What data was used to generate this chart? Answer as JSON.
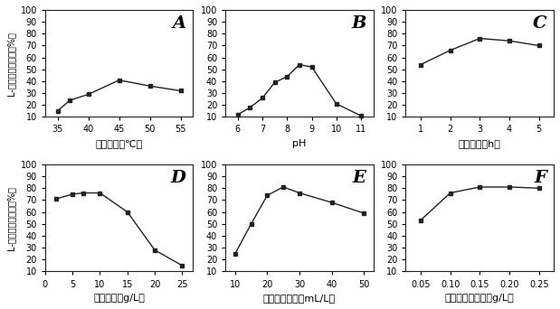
{
  "A": {
    "x": [
      35,
      37,
      40,
      45,
      50,
      55
    ],
    "y": [
      15,
      24,
      29,
      41,
      36,
      32
    ],
    "xlabel": "反应温度（℃）",
    "label": "A",
    "xlim": [
      33,
      57
    ],
    "xticks": [
      35,
      40,
      45,
      50,
      55
    ]
  },
  "B": {
    "x": [
      6,
      6.5,
      7,
      7.5,
      8,
      8.5,
      9,
      10,
      11
    ],
    "y": [
      12,
      18,
      26,
      39,
      44,
      54,
      52,
      21,
      11
    ],
    "xlabel": "pH",
    "label": "B",
    "xlim": [
      5.5,
      11.5
    ],
    "xticks": [
      6,
      7,
      8,
      9,
      10,
      11
    ]
  },
  "C": {
    "x": [
      1,
      2,
      3,
      4,
      5
    ],
    "y": [
      54,
      66,
      76,
      74,
      70
    ],
    "xlabel": "反应时间（h）",
    "label": "C",
    "xlim": [
      0.5,
      5.5
    ],
    "xticks": [
      1,
      2,
      3,
      4,
      5
    ]
  },
  "D": {
    "x": [
      2,
      5,
      7,
      10,
      15,
      20,
      25
    ],
    "y": [
      71,
      75,
      76,
      76,
      60,
      28,
      15
    ],
    "xlabel": "底物浓度（g/L）",
    "label": "D",
    "xlim": [
      0,
      27
    ],
    "xticks": [
      0,
      5,
      10,
      15,
      20,
      25
    ]
  },
  "E": {
    "x": [
      10,
      15,
      20,
      25,
      30,
      40,
      50
    ],
    "y": [
      25,
      50,
      74,
      81,
      76,
      68,
      59
    ],
    "xlabel": "固定化酶体积（mL/L）",
    "label": "E",
    "xlim": [
      7,
      53
    ],
    "xticks": [
      10,
      20,
      30,
      40,
      50
    ]
  },
  "F": {
    "x": [
      0.05,
      0.1,
      0.15,
      0.2,
      0.25
    ],
    "y": [
      53,
      76,
      81,
      81,
      80
    ],
    "xlabel": "磷酸吡哆醛浓度（g/L）",
    "label": "F",
    "xlim": [
      0.025,
      0.275
    ],
    "xticks": [
      0.05,
      0.1,
      0.15,
      0.2,
      0.25
    ]
  },
  "ylabel": "L-半胱氨酸转化率（%）",
  "ylim": [
    10,
    100
  ],
  "yticks": [
    10,
    20,
    30,
    40,
    50,
    60,
    70,
    80,
    90,
    100
  ],
  "line_color": "#222222",
  "marker": "s",
  "markersize": 3.5,
  "linewidth": 1.0,
  "bg_color": "#ffffff",
  "xlabel_fontsize": 8,
  "ylabel_fontsize": 7,
  "tick_fontsize": 7,
  "panel_label_fontsize": 14
}
